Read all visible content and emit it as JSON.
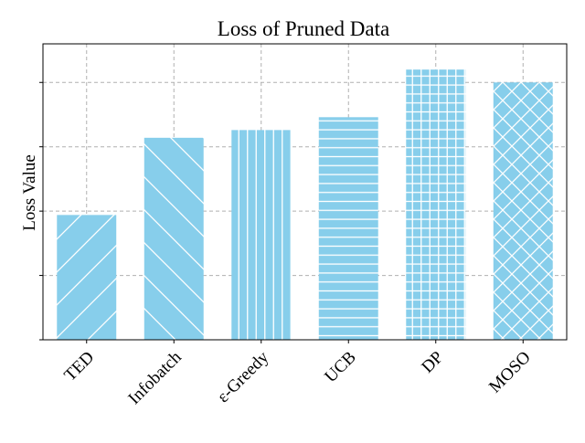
{
  "chart_data": {
    "type": "bar",
    "title": "Loss of Pruned Data",
    "xlabel": "",
    "ylabel": "Loss Value",
    "categories": [
      "TED",
      "Infobatch",
      "ε-Greedy",
      "UCB",
      "DP",
      "MOSO"
    ],
    "values": [
      0.97,
      1.57,
      1.63,
      1.73,
      2.1,
      2.0
    ],
    "ylim": [
      0,
      2.3
    ],
    "yticks": [
      0,
      0.5,
      1.0,
      1.5,
      2.0
    ],
    "ytick_labels_visible": false,
    "grid": true,
    "bar_color": "#87CEEB",
    "hatch_color": "#ffffff",
    "hatches": [
      "/",
      "\\",
      "|",
      "-",
      "+",
      "x"
    ]
  }
}
